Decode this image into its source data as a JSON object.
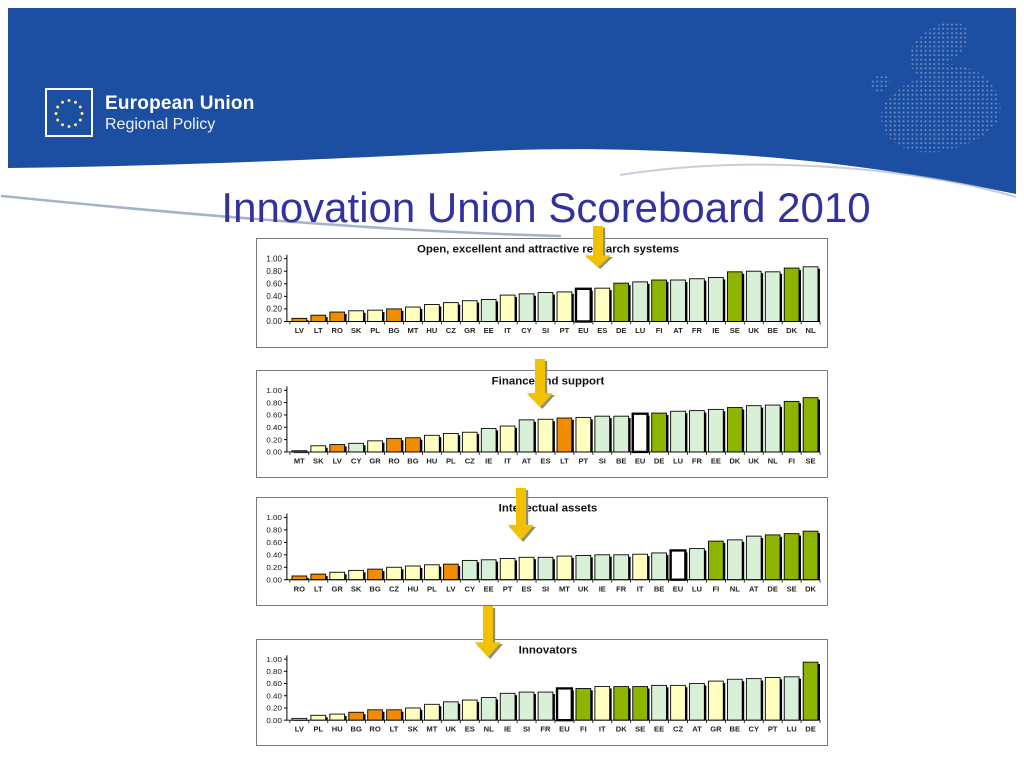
{
  "slide": {
    "title": "Innovation Union Scoreboard 2010"
  },
  "header": {
    "logo": {
      "line1": "European Union",
      "line2": "Regional Policy"
    },
    "map_icon": "europe-dotted-map-icon",
    "flag_icon": "eu-flag-icon"
  },
  "colors": {
    "slide_blue": "#1C4FA1",
    "title_text": "#31329E",
    "orange": "#F08C00",
    "yellow": "#FFFFC0",
    "green_light": "#D8F0D8",
    "green_dark": "#8CB400",
    "eu": "#FFFFFF",
    "bar_outline": "#000000",
    "arrow": "#F2C100",
    "arrow_shadow": "#8F8F75",
    "star_yellow": "#FFE97F"
  },
  "chart_data": [
    {
      "type": "bar",
      "title": "Open, excellent and attractive research systems",
      "ylim": [
        0,
        1
      ],
      "ytick_labels": [
        "0.00",
        "0.20",
        "0.40",
        "0.60",
        "0.80",
        "1.00"
      ],
      "categories": [
        "LV",
        "LT",
        "RO",
        "SK",
        "PL",
        "BG",
        "MT",
        "HU",
        "CZ",
        "GR",
        "EE",
        "IT",
        "CY",
        "SI",
        "PT",
        "EU",
        "ES",
        "DE",
        "LU",
        "FI",
        "AT",
        "FR",
        "IE",
        "SE",
        "UK",
        "BE",
        "DK",
        "NL"
      ],
      "values": [
        0.05,
        0.1,
        0.15,
        0.17,
        0.18,
        0.2,
        0.23,
        0.27,
        0.3,
        0.33,
        0.35,
        0.42,
        0.44,
        0.46,
        0.47,
        0.52,
        0.53,
        0.61,
        0.63,
        0.66,
        0.66,
        0.68,
        0.7,
        0.79,
        0.8,
        0.79,
        0.85,
        0.87
      ],
      "bar_colors": [
        "orange",
        "orange",
        "orange",
        "yellow",
        "yellow",
        "orange",
        "yellow",
        "yellow",
        "yellow",
        "yellow",
        "green_light",
        "yellow",
        "green_light",
        "green_light",
        "yellow",
        "eu",
        "yellow",
        "green_dark",
        "green_light",
        "green_dark",
        "green_light",
        "green_light",
        "green_light",
        "green_dark",
        "green_light",
        "green_light",
        "green_dark",
        "green_light"
      ]
    },
    {
      "type": "bar",
      "title": "Finance and support",
      "ylim": [
        0,
        1
      ],
      "ytick_labels": [
        "0.00",
        "0.20",
        "0.40",
        "0.60",
        "0.80",
        "1.00"
      ],
      "categories": [
        "MT",
        "SK",
        "LV",
        "CY",
        "GR",
        "RO",
        "BG",
        "HU",
        "PL",
        "CZ",
        "IE",
        "IT",
        "AT",
        "ES",
        "LT",
        "PT",
        "SI",
        "BE",
        "EU",
        "DE",
        "LU",
        "FR",
        "EE",
        "DK",
        "UK",
        "NL",
        "FI",
        "SE"
      ],
      "values": [
        0.02,
        0.1,
        0.12,
        0.14,
        0.18,
        0.22,
        0.23,
        0.27,
        0.3,
        0.32,
        0.38,
        0.42,
        0.52,
        0.53,
        0.55,
        0.56,
        0.58,
        0.58,
        0.62,
        0.63,
        0.66,
        0.67,
        0.69,
        0.72,
        0.75,
        0.76,
        0.82,
        0.88
      ],
      "bar_colors": [
        "orange",
        "yellow",
        "orange",
        "green_light",
        "yellow",
        "orange",
        "orange",
        "yellow",
        "yellow",
        "yellow",
        "green_light",
        "yellow",
        "green_light",
        "yellow",
        "orange",
        "yellow",
        "green_light",
        "green_light",
        "eu",
        "green_dark",
        "green_light",
        "green_light",
        "green_light",
        "green_dark",
        "green_light",
        "green_light",
        "green_dark",
        "green_dark"
      ]
    },
    {
      "type": "bar",
      "title": "Intellectual assets",
      "ylim": [
        0,
        1
      ],
      "ytick_labels": [
        "0.00",
        "0.20",
        "0.40",
        "0.60",
        "0.80",
        "1.00"
      ],
      "categories": [
        "RO",
        "LT",
        "GR",
        "SK",
        "BG",
        "CZ",
        "HU",
        "PL",
        "LV",
        "CY",
        "EE",
        "PT",
        "ES",
        "SI",
        "MT",
        "UK",
        "IE",
        "FR",
        "IT",
        "BE",
        "EU",
        "LU",
        "FI",
        "NL",
        "AT",
        "DE",
        "SE",
        "DK"
      ],
      "values": [
        0.06,
        0.09,
        0.12,
        0.15,
        0.17,
        0.2,
        0.22,
        0.24,
        0.25,
        0.31,
        0.32,
        0.34,
        0.36,
        0.36,
        0.38,
        0.39,
        0.4,
        0.4,
        0.41,
        0.43,
        0.47,
        0.5,
        0.62,
        0.64,
        0.7,
        0.72,
        0.74,
        0.78
      ],
      "bar_colors": [
        "orange",
        "orange",
        "yellow",
        "yellow",
        "orange",
        "yellow",
        "yellow",
        "yellow",
        "orange",
        "green_light",
        "green_light",
        "yellow",
        "yellow",
        "green_light",
        "yellow",
        "green_light",
        "green_light",
        "green_light",
        "yellow",
        "green_light",
        "eu",
        "green_light",
        "green_dark",
        "green_light",
        "green_light",
        "green_dark",
        "green_dark",
        "green_dark"
      ]
    },
    {
      "type": "bar",
      "title": "Innovators",
      "ylim": [
        0,
        1
      ],
      "ytick_labels": [
        "0.00",
        "0.20",
        "0.40",
        "0.60",
        "0.80",
        "1.00"
      ],
      "categories": [
        "LV",
        "PL",
        "HU",
        "BG",
        "RO",
        "LT",
        "SK",
        "MT",
        "UK",
        "ES",
        "NL",
        "IE",
        "SI",
        "FR",
        "EU",
        "FI",
        "IT",
        "DK",
        "SE",
        "EE",
        "CZ",
        "AT",
        "GR",
        "BE",
        "CY",
        "PT",
        "LU",
        "DE"
      ],
      "values": [
        0.03,
        0.08,
        0.1,
        0.13,
        0.17,
        0.17,
        0.2,
        0.26,
        0.3,
        0.33,
        0.37,
        0.44,
        0.46,
        0.46,
        0.52,
        0.52,
        0.55,
        0.55,
        0.55,
        0.57,
        0.57,
        0.6,
        0.64,
        0.67,
        0.68,
        0.7,
        0.71,
        0.95
      ],
      "bar_colors": [
        "yellow",
        "yellow",
        "yellow",
        "orange",
        "orange",
        "orange",
        "yellow",
        "yellow",
        "green_light",
        "yellow",
        "green_light",
        "green_light",
        "green_light",
        "green_light",
        "eu",
        "green_dark",
        "yellow",
        "green_dark",
        "green_dark",
        "green_light",
        "yellow",
        "green_light",
        "yellow",
        "green_light",
        "green_light",
        "yellow",
        "green_light",
        "green_dark"
      ]
    }
  ]
}
